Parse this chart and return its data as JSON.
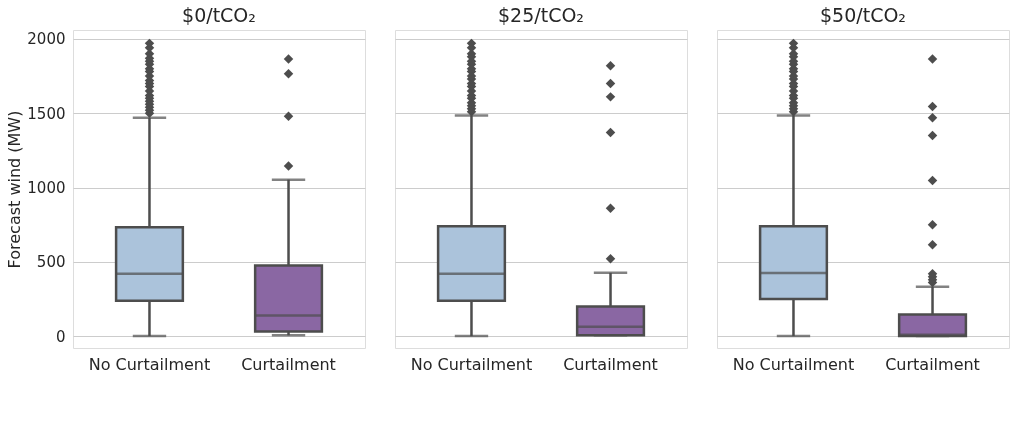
{
  "chart_data": [
    {
      "type": "box",
      "title": "$0/tCO₂",
      "ylabel": "Forecast wind (MW)",
      "categories": [
        "No Curtailment",
        "Curtailment"
      ],
      "colors": [
        "#abc3db",
        "#8a67a3"
      ],
      "ylim": [
        -80,
        2060
      ],
      "yticks": [
        0,
        500,
        1000,
        1500,
        2000
      ],
      "grid": "y",
      "marker": "diamond",
      "boxes": [
        {
          "low": 0,
          "q1": 238,
          "median": 420,
          "q3": 733,
          "high": 1470,
          "outliers": [
            1500,
            1520,
            1540,
            1560,
            1580,
            1600,
            1620,
            1650,
            1680,
            1700,
            1720,
            1750,
            1780,
            1800,
            1830,
            1850,
            1870,
            1900,
            1940,
            1970
          ]
        },
        {
          "low": 5,
          "q1": 31,
          "median": 138,
          "q3": 476,
          "high": 1053,
          "outliers": [
            1145,
            1480,
            1765,
            1865
          ]
        }
      ]
    },
    {
      "type": "box",
      "title": "$25/tCO₂",
      "categories": [
        "No Curtailment",
        "Curtailment"
      ],
      "colors": [
        "#abc3db",
        "#8a67a3"
      ],
      "ylim": [
        -80,
        2060
      ],
      "yticks": [
        0,
        500,
        1000,
        1500,
        2000
      ],
      "grid": "y",
      "marker": "diamond",
      "tick_labels": "x",
      "boxes": [
        {
          "low": 0,
          "q1": 238,
          "median": 420,
          "q3": 740,
          "high": 1485,
          "outliers": [
            1510,
            1530,
            1550,
            1570,
            1600,
            1620,
            1650,
            1680,
            1700,
            1730,
            1750,
            1780,
            1800,
            1830,
            1850,
            1880,
            1900,
            1940,
            1970
          ]
        },
        {
          "low": 5,
          "q1": 5,
          "median": 63,
          "q3": 200,
          "high": 426,
          "outliers": [
            520,
            860,
            1370,
            1610,
            1700,
            1820
          ]
        }
      ]
    },
    {
      "type": "box",
      "title": "$50/tCO₂",
      "categories": [
        "No Curtailment",
        "Curtailment"
      ],
      "colors": [
        "#abc3db",
        "#8a67a3"
      ],
      "ylim": [
        -80,
        2060
      ],
      "yticks": [
        0,
        500,
        1000,
        1500,
        2000
      ],
      "grid": "y",
      "marker": "diamond",
      "tick_labels": "x",
      "boxes": [
        {
          "low": 0,
          "q1": 250,
          "median": 425,
          "q3": 740,
          "high": 1485,
          "outliers": [
            1510,
            1530,
            1550,
            1570,
            1600,
            1620,
            1650,
            1680,
            1700,
            1730,
            1750,
            1780,
            1800,
            1830,
            1850,
            1880,
            1900,
            1940,
            1970
          ]
        },
        {
          "low": 0,
          "q1": 0,
          "median": 10,
          "q3": 145,
          "high": 333,
          "outliers": [
            360,
            380,
            400,
            420,
            615,
            750,
            1047,
            1350,
            1470,
            1545,
            1865
          ]
        }
      ]
    }
  ]
}
